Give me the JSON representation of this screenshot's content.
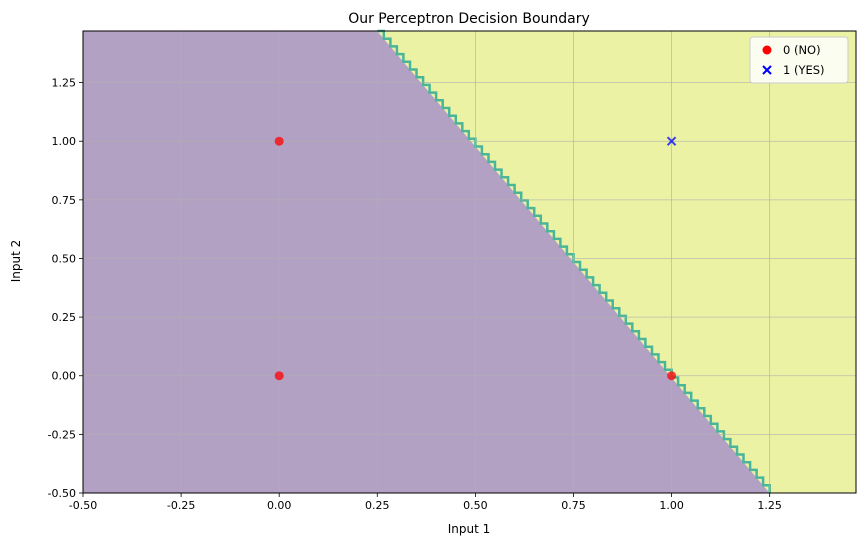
{
  "chart_data": {
    "type": "scatter",
    "title": "Our Perceptron Decision Boundary",
    "xlabel": "Input 1",
    "ylabel": "Input 2",
    "xlim": [
      -0.5,
      1.47
    ],
    "ylim": [
      -0.5,
      1.47
    ],
    "grid": true,
    "x_ticks": [
      "-0.50",
      "-0.25",
      "0.00",
      "0.25",
      "0.50",
      "0.75",
      "1.00",
      "1.25"
    ],
    "y_ticks": [
      "-0.50",
      "-0.25",
      "0.00",
      "0.25",
      "0.50",
      "0.75",
      "1.00",
      "1.25"
    ],
    "legend_position": "top-right",
    "decision_boundary": {
      "points": [
        [
          0.25,
          1.47
        ],
        [
          1.25,
          -0.5
        ]
      ],
      "region_colors": {
        "class_0": "#b3a1c3",
        "class_1": "#ebf2a4",
        "edge": "#4bb59a"
      }
    },
    "series": [
      {
        "name": "0 (NO)",
        "marker": "circle",
        "color": "#ff0000",
        "points": [
          [
            0,
            0
          ],
          [
            0,
            1
          ],
          [
            1,
            0
          ]
        ]
      },
      {
        "name": "1 (YES)",
        "marker": "x",
        "color": "#0000ff",
        "points": [
          [
            1,
            1
          ]
        ]
      }
    ]
  }
}
